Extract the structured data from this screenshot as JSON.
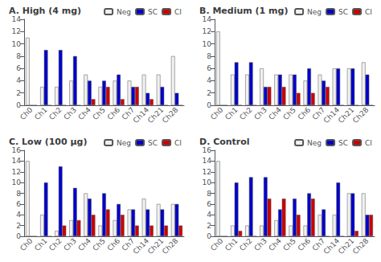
{
  "chart_data": [
    {
      "type": "bar",
      "title": "A. High (4 mg)",
      "categories": [
        "Ch0",
        "Ch1",
        "Ch2",
        "Ch3",
        "Ch4",
        "Ch5",
        "Ch6",
        "Ch7",
        "Ch14",
        "Ch21",
        "Ch28"
      ],
      "series": [
        {
          "name": "Neg",
          "color": "#f0f0f0",
          "values": [
            11,
            3,
            3,
            4,
            5,
            3,
            4,
            4,
            5,
            5,
            8
          ]
        },
        {
          "name": "SC",
          "color": "#0000cc",
          "values": [
            0,
            9,
            9,
            8,
            4,
            4,
            5,
            3,
            2,
            3,
            2
          ]
        },
        {
          "name": "CI",
          "color": "#cc0000",
          "values": [
            0,
            0,
            0,
            0,
            1,
            3,
            1,
            3,
            1,
            0,
            0
          ]
        }
      ],
      "ylim": [
        0,
        14
      ],
      "yticks": [
        0,
        2,
        4,
        6,
        8,
        10,
        12,
        14
      ],
      "legend": "upper right",
      "grid": false
    },
    {
      "type": "bar",
      "title": "B. Medium (1 mg)",
      "categories": [
        "Ch0",
        "Ch1",
        "Ch2",
        "Ch3",
        "Ch4",
        "Ch5",
        "Ch6",
        "Ch7",
        "Ch14",
        "Ch21",
        "Ch28"
      ],
      "series": [
        {
          "name": "Neg",
          "color": "#f0f0f0",
          "values": [
            12,
            5,
            5,
            6,
            5,
            5,
            4,
            5,
            6,
            6,
            7
          ]
        },
        {
          "name": "SC",
          "color": "#0000cc",
          "values": [
            0,
            7,
            7,
            3,
            5,
            5,
            6,
            4,
            6,
            6,
            5
          ]
        },
        {
          "name": "CI",
          "color": "#cc0000",
          "values": [
            0,
            0,
            0,
            3,
            3,
            2,
            2,
            3,
            0,
            0,
            0
          ]
        }
      ],
      "ylim": [
        0,
        14
      ],
      "yticks": [
        0,
        2,
        4,
        6,
        8,
        10,
        12,
        14
      ],
      "legend": "upper right",
      "grid": false
    },
    {
      "type": "bar",
      "title": "C. Low (100 μg)",
      "categories": [
        "Ch0",
        "Ch1",
        "Ch2",
        "Ch3",
        "Ch4",
        "Ch5",
        "Ch6",
        "Ch7",
        "Ch14",
        "Ch21",
        "Ch28"
      ],
      "series": [
        {
          "name": "Neg",
          "color": "#f0f0f0",
          "values": [
            14,
            4,
            1,
            3,
            8,
            2,
            3,
            5,
            7,
            6,
            6
          ]
        },
        {
          "name": "SC",
          "color": "#0000cc",
          "values": [
            0,
            10,
            13,
            9,
            7,
            8,
            6,
            5,
            5,
            5,
            6
          ]
        },
        {
          "name": "CI",
          "color": "#cc0000",
          "values": [
            0,
            0,
            2,
            3,
            4,
            5,
            4,
            2,
            2,
            2,
            2
          ]
        }
      ],
      "ylim": [
        0,
        16
      ],
      "yticks": [
        0,
        2,
        4,
        6,
        8,
        10,
        12,
        14,
        16
      ],
      "legend": "upper right",
      "grid": false
    },
    {
      "type": "bar",
      "title": "D. Control",
      "categories": [
        "Ch0",
        "Ch1",
        "Ch2",
        "Ch3",
        "Ch4",
        "Ch5",
        "Ch6",
        "Ch7",
        "Ch14",
        "Ch21",
        "Ch28"
      ],
      "series": [
        {
          "name": "Neg",
          "color": "#f0f0f0",
          "values": [
            14,
            2,
            2,
            2,
            3,
            2,
            2,
            4,
            4,
            8,
            8
          ]
        },
        {
          "name": "SC",
          "color": "#0000cc",
          "values": [
            0,
            10,
            11,
            11,
            5,
            7,
            8,
            5,
            10,
            8,
            4
          ]
        },
        {
          "name": "CI",
          "color": "#cc0000",
          "values": [
            0,
            1,
            0,
            7,
            7,
            4,
            7,
            0,
            0,
            1,
            4
          ]
        }
      ],
      "ylim": [
        0,
        16
      ],
      "yticks": [
        0,
        2,
        4,
        6,
        8,
        10,
        12,
        14,
        16
      ],
      "legend": "upper right",
      "grid": false
    }
  ]
}
